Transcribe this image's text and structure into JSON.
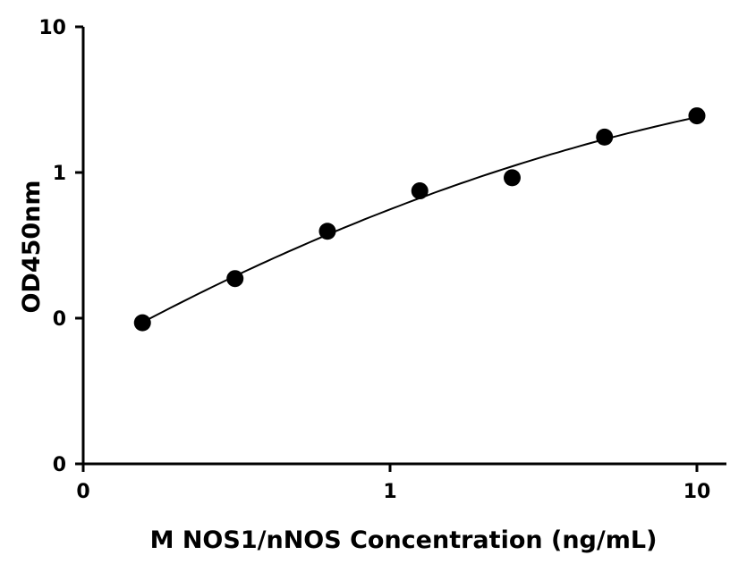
{
  "chart_data": {
    "type": "scatter",
    "title": "",
    "xlabel": "M NOS1/nNOS Concentration (ng/mL)",
    "ylabel": "OD450nm",
    "x_scale": "log",
    "y_scale": "log",
    "xlim": [
      0.1,
      12
    ],
    "ylim": [
      0.01,
      10
    ],
    "x_ticks": [
      {
        "value": 0.1,
        "label": "0"
      },
      {
        "value": 1,
        "label": "1"
      },
      {
        "value": 10,
        "label": "10"
      }
    ],
    "y_ticks": [
      {
        "value": 0.01,
        "label": "0"
      },
      {
        "value": 0.1,
        "label": "0"
      },
      {
        "value": 1,
        "label": "1"
      },
      {
        "value": 10,
        "label": "10"
      }
    ],
    "series": [
      {
        "points": [
          {
            "x": 0.156,
            "y": 0.093
          },
          {
            "x": 0.3125,
            "y": 0.187
          },
          {
            "x": 0.625,
            "y": 0.395
          },
          {
            "x": 1.25,
            "y": 0.748
          },
          {
            "x": 2.5,
            "y": 0.92
          },
          {
            "x": 5,
            "y": 1.75
          },
          {
            "x": 10,
            "y": 2.45
          }
        ]
      }
    ],
    "fit_curve": true,
    "grid": false,
    "legend": "none",
    "marker_color": "#000000",
    "line_color": "#000000"
  }
}
